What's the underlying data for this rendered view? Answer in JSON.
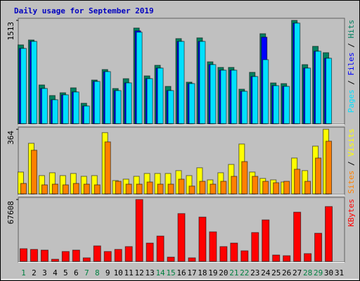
{
  "chart_data": [
    {
      "type": "bar",
      "title": "Daily usage for September 2019",
      "ylim": [
        0,
        1544
      ],
      "yticks": [
        1513
      ],
      "legend_separator": " / ",
      "series": [
        {
          "name": "Hits",
          "color": "#008060",
          "values": [
            1154,
            1226,
            567,
            412,
            453,
            525,
            299,
            639,
            793,
            515,
            659,
            1401,
            700,
            855,
            546,
            1246,
            608,
            1257,
            906,
            824,
            824,
            505,
            752,
            1318,
            597,
            587,
            1513,
            865,
            1133,
            1040,
            0
          ]
        },
        {
          "name": "Files",
          "color": "#0000ff",
          "values": [
            1102,
            1205,
            515,
            350,
            422,
            464,
            258,
            618,
            762,
            484,
            597,
            1360,
            659,
            814,
            484,
            1205,
            587,
            1205,
            865,
            783,
            783,
            474,
            690,
            1267,
            556,
            546,
            1473,
            814,
            1061,
            958,
            0
          ]
        },
        {
          "name": "Pages",
          "color": "#00e0ff",
          "values": [
            1102,
            1205,
            515,
            350,
            422,
            464,
            258,
            618,
            762,
            484,
            597,
            1340,
            659,
            814,
            484,
            1205,
            587,
            1205,
            865,
            783,
            783,
            474,
            690,
            937,
            556,
            546,
            1473,
            814,
            1061,
            958,
            0
          ]
        }
      ]
    },
    {
      "type": "bar",
      "ylim": [
        0,
        376
      ],
      "yticks": [
        364
      ],
      "legend_separator": " / ",
      "series": [
        {
          "name": "Visits",
          "color": "#ffff00",
          "values": [
            123,
            285,
            103,
            119,
            103,
            115,
            99,
            103,
            345,
            75,
            83,
            99,
            115,
            115,
            115,
            131,
            103,
            147,
            79,
            119,
            166,
            281,
            123,
            87,
            79,
            67,
            202,
            131,
            269,
            364,
            0
          ]
        },
        {
          "name": "Sites",
          "color": "#ff8000",
          "values": [
            59,
            246,
            51,
            55,
            51,
            59,
            55,
            51,
            293,
            71,
            55,
            55,
            67,
            55,
            55,
            83,
            44,
            71,
            55,
            71,
            99,
            182,
            99,
            71,
            63,
            71,
            139,
            71,
            202,
            297,
            0
          ]
        }
      ]
    },
    {
      "type": "bar",
      "ylim": [
        0,
        69900
      ],
      "yticks": [
        67608
      ],
      "series": [
        {
          "name": "KBytes",
          "color": "#ff0000",
          "values": [
            13824,
            13056,
            12288,
            2304,
            10752,
            12288,
            3840,
            16896,
            10752,
            13056,
            16128,
            67608,
            19968,
            27648,
            4608,
            52224,
            3840,
            48384,
            32256,
            16128,
            19968,
            11520,
            31488,
            45312,
            6912,
            6144,
            53760,
            8448,
            30720,
            59904,
            0
          ]
        }
      ],
      "categories": [
        "1",
        "2",
        "3",
        "4",
        "5",
        "6",
        "7",
        "8",
        "9",
        "10",
        "11",
        "12",
        "13",
        "14",
        "15",
        "16",
        "17",
        "18",
        "19",
        "20",
        "21",
        "22",
        "23",
        "24",
        "25",
        "26",
        "27",
        "28",
        "29",
        "30",
        "31"
      ],
      "category_label_colors": [
        "#008040",
        "#000000",
        "#000000",
        "#000000",
        "#000000",
        "#000000",
        "#008040",
        "#008040",
        "#000000",
        "#000000",
        "#000000",
        "#000000",
        "#000000",
        "#008040",
        "#008040",
        "#000000",
        "#000000",
        "#000000",
        "#000000",
        "#000000",
        "#008040",
        "#008040",
        "#000000",
        "#000000",
        "#000000",
        "#000000",
        "#000000",
        "#008040",
        "#008040",
        "#000000",
        "#000000"
      ]
    }
  ]
}
